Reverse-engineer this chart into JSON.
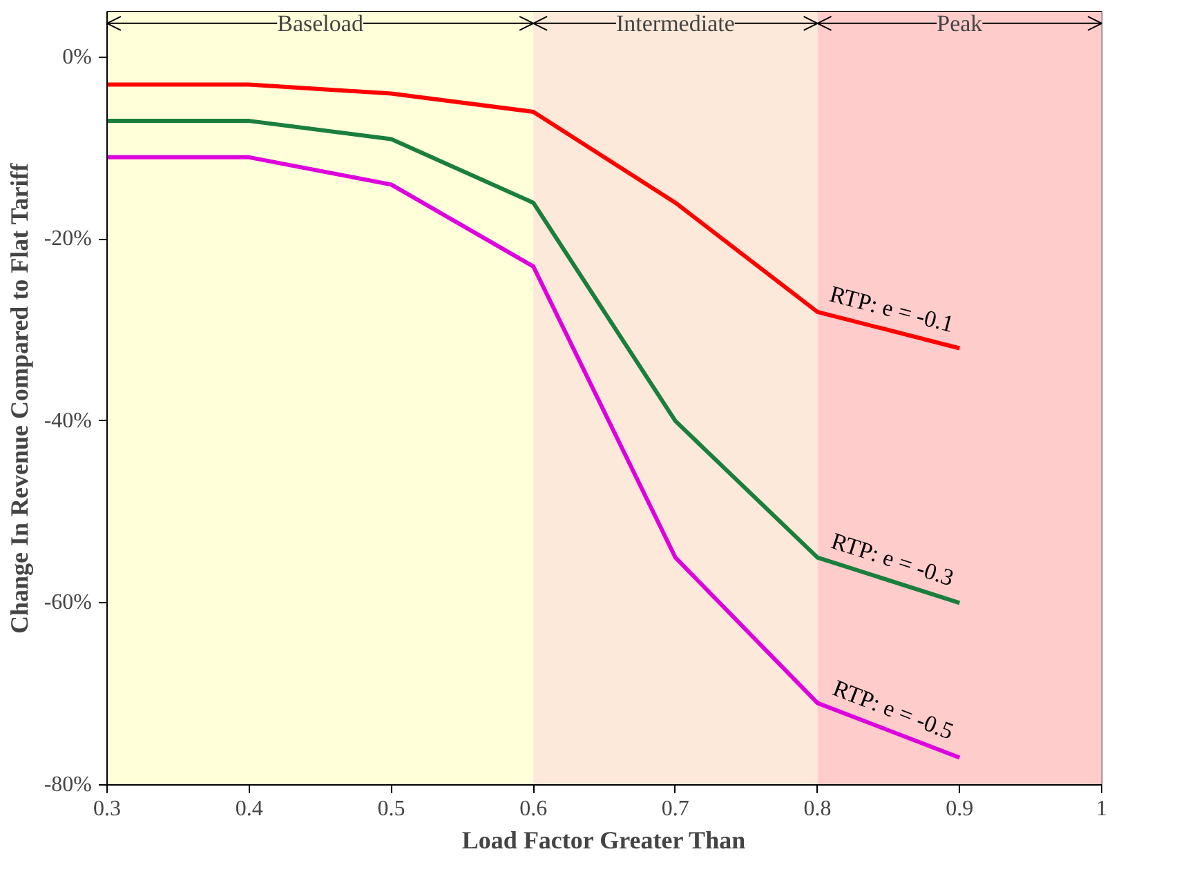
{
  "chart_data": {
    "type": "line",
    "xlabel": "Load Factor Greater Than",
    "ylabel": "Change In Revenue Compared to Flat Tariff",
    "x": [
      0.3,
      0.4,
      0.5,
      0.6,
      0.7,
      0.8,
      0.9
    ],
    "series": [
      {
        "name": "RTP: e = -0.1",
        "color": "#ff0000",
        "values": [
          -3,
          -3,
          -4,
          -6,
          -16,
          -28,
          -32
        ]
      },
      {
        "name": "RTP: e = -0.3",
        "color": "#1a7f3c",
        "values": [
          -7,
          -7,
          -9,
          -16,
          -40,
          -55,
          -60
        ]
      },
      {
        "name": "RTP: e = -0.5",
        "color": "#dd00dd",
        "values": [
          -11,
          -11,
          -14,
          -23,
          -55,
          -71,
          -77
        ]
      }
    ],
    "xlim": [
      0.3,
      1.0
    ],
    "ylim": [
      -80,
      5
    ],
    "xticks": [
      0.3,
      0.4,
      0.5,
      0.6,
      0.7,
      0.8,
      0.9,
      {
        "value": 1.0,
        "label": "1"
      }
    ],
    "yticks": [
      {
        "value": 0,
        "label": "0%"
      },
      {
        "value": -20,
        "label": "-20%"
      },
      {
        "value": -40,
        "label": "-40%"
      },
      {
        "value": -60,
        "label": "-60%"
      },
      {
        "value": -80,
        "label": "-80%"
      }
    ],
    "bands": [
      {
        "axis": "x",
        "from": 0.3,
        "to": 0.6,
        "label": "Baseload",
        "color": "#ffffd9"
      },
      {
        "axis": "x",
        "from": 0.6,
        "to": 0.8,
        "label": "Intermediate",
        "color": "#fde9d9"
      },
      {
        "axis": "x",
        "from": 0.8,
        "to": 1.0,
        "label": "Peak",
        "color": "#ffcccc"
      }
    ],
    "grid": false,
    "marker": "none",
    "line_style": "solid"
  }
}
